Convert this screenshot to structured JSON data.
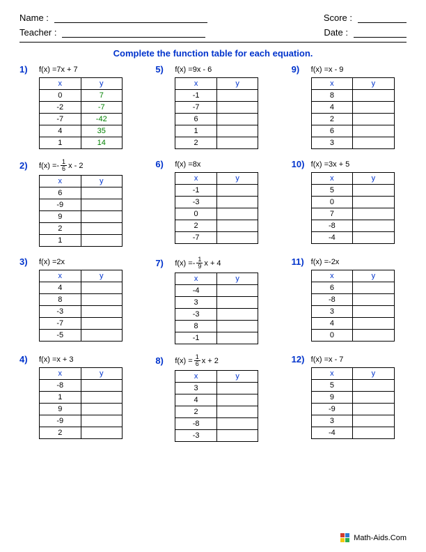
{
  "header": {
    "name_label": "Name :",
    "teacher_label": "Teacher :",
    "score_label": "Score :",
    "date_label": "Date :"
  },
  "instructions": "Complete the function table for each equation.",
  "col_headers": {
    "x": "x",
    "y": "y"
  },
  "fx_label": "f(x) = ",
  "problems": [
    {
      "number": "1)",
      "eq_before": " 7x + 7",
      "rows": [
        [
          "0",
          "7"
        ],
        [
          "-2",
          "-7"
        ],
        [
          "-7",
          "-42"
        ],
        [
          "4",
          "35"
        ],
        [
          "1",
          "14"
        ]
      ],
      "answers": true
    },
    {
      "number": "2)",
      "neg": true,
      "frac_num": "1",
      "frac_den": "6",
      "eq_after": "x - 2",
      "rows": [
        [
          "6",
          ""
        ],
        [
          "-9",
          ""
        ],
        [
          "9",
          ""
        ],
        [
          "2",
          ""
        ],
        [
          "1",
          ""
        ]
      ]
    },
    {
      "number": "3)",
      "eq_before": " 2x",
      "rows": [
        [
          "4",
          ""
        ],
        [
          "8",
          ""
        ],
        [
          "-3",
          ""
        ],
        [
          "-7",
          ""
        ],
        [
          "-5",
          ""
        ]
      ]
    },
    {
      "number": "4)",
      "eq_before": " x + 3",
      "rows": [
        [
          "-8",
          ""
        ],
        [
          "1",
          ""
        ],
        [
          "9",
          ""
        ],
        [
          "-9",
          ""
        ],
        [
          "2",
          ""
        ]
      ]
    },
    {
      "number": "5)",
      "eq_before": " 9x - 6",
      "rows": [
        [
          "-1",
          ""
        ],
        [
          "-7",
          ""
        ],
        [
          "6",
          ""
        ],
        [
          "1",
          ""
        ],
        [
          "2",
          ""
        ]
      ]
    },
    {
      "number": "6)",
      "eq_before": " 8x",
      "rows": [
        [
          "-1",
          ""
        ],
        [
          "-3",
          ""
        ],
        [
          "0",
          ""
        ],
        [
          "2",
          ""
        ],
        [
          "-7",
          ""
        ]
      ]
    },
    {
      "number": "7)",
      "neg": true,
      "frac_num": "1",
      "frac_den": "9",
      "eq_after": "x + 4",
      "rows": [
        [
          "-4",
          ""
        ],
        [
          "3",
          ""
        ],
        [
          "-3",
          ""
        ],
        [
          "8",
          ""
        ],
        [
          "-1",
          ""
        ]
      ]
    },
    {
      "number": "8)",
      "frac_num": "1",
      "frac_den": "6",
      "eq_after": "x + 2",
      "rows": [
        [
          "3",
          ""
        ],
        [
          "4",
          ""
        ],
        [
          "2",
          ""
        ],
        [
          "-8",
          ""
        ],
        [
          "-3",
          ""
        ]
      ]
    },
    {
      "number": "9)",
      "eq_before": " x - 9",
      "rows": [
        [
          "8",
          ""
        ],
        [
          "4",
          ""
        ],
        [
          "2",
          ""
        ],
        [
          "6",
          ""
        ],
        [
          "3",
          ""
        ]
      ]
    },
    {
      "number": "10)",
      "eq_before": " 3x + 5",
      "rows": [
        [
          "5",
          ""
        ],
        [
          "0",
          ""
        ],
        [
          "7",
          ""
        ],
        [
          "-8",
          ""
        ],
        [
          "-4",
          ""
        ]
      ]
    },
    {
      "number": "11)",
      "eq_before": " -2x",
      "rows": [
        [
          "6",
          ""
        ],
        [
          "-8",
          ""
        ],
        [
          "3",
          ""
        ],
        [
          "4",
          ""
        ],
        [
          "0",
          ""
        ]
      ]
    },
    {
      "number": "12)",
      "eq_before": " x - 7",
      "rows": [
        [
          "5",
          ""
        ],
        [
          "9",
          ""
        ],
        [
          "-9",
          ""
        ],
        [
          "3",
          ""
        ],
        [
          "-4",
          ""
        ]
      ]
    }
  ],
  "column_order": [
    0,
    4,
    8,
    1,
    5,
    9,
    2,
    6,
    10,
    3,
    7,
    11
  ],
  "footer": {
    "text": "Math-Aids.Com",
    "logo_colors": [
      "#d23b2e",
      "#2e7bd2",
      "#f2c80f",
      "#2eae4f"
    ]
  },
  "colors": {
    "blue": "#0033cc",
    "green": "#008000"
  }
}
